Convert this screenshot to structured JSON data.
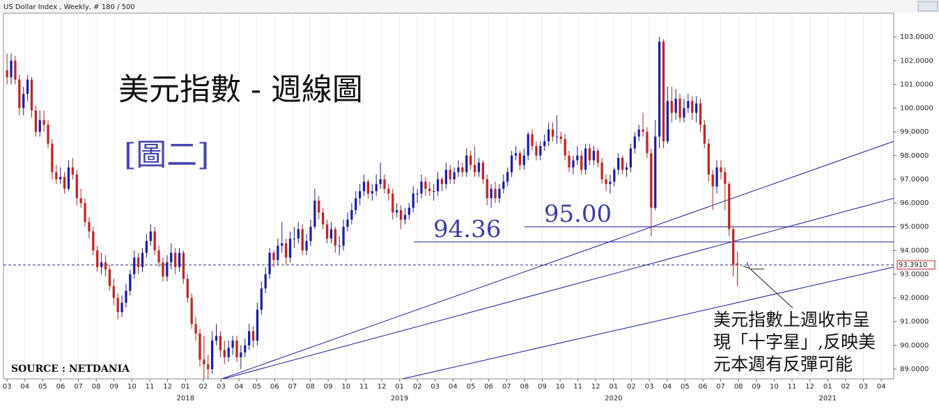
{
  "chart_data": {
    "type": "candlestick",
    "header": "US Dollar Index , Weekly, # 180 / 500",
    "title": "美元指數 - 週線圖",
    "subtitle": "[圖二]",
    "source": "SOURCE : NETDANIA",
    "annotation": [
      "美元指數上週收市呈",
      "現「十字星」,反映美",
      "元本週有反彈可能"
    ],
    "up_color": "#1c1cb4",
    "down_color": "#cc1f1f",
    "xlim": [
      -0.2,
      49.7
    ],
    "ylim": [
      88.59,
      104.0
    ],
    "xticks": [
      {
        "value": 0,
        "label": "03"
      },
      {
        "value": 1,
        "label": "04"
      },
      {
        "value": 2,
        "label": "05"
      },
      {
        "value": 3,
        "label": "06"
      },
      {
        "value": 4,
        "label": "07"
      },
      {
        "value": 5,
        "label": "08"
      },
      {
        "value": 6,
        "label": "09"
      },
      {
        "value": 7,
        "label": "10"
      },
      {
        "value": 8,
        "label": "11"
      },
      {
        "value": 9,
        "label": "12"
      },
      {
        "value": 10,
        "label": "01"
      },
      {
        "value": 11,
        "label": "02"
      },
      {
        "value": 12,
        "label": "03"
      },
      {
        "value": 13,
        "label": "04"
      },
      {
        "value": 14,
        "label": "05"
      },
      {
        "value": 15,
        "label": "06"
      },
      {
        "value": 16,
        "label": "07"
      },
      {
        "value": 17,
        "label": "08"
      },
      {
        "value": 18,
        "label": "09"
      },
      {
        "value": 19,
        "label": "10"
      },
      {
        "value": 20,
        "label": "11"
      },
      {
        "value": 21,
        "label": "12"
      },
      {
        "value": 22,
        "label": "01"
      },
      {
        "value": 23,
        "label": "02"
      },
      {
        "value": 24,
        "label": "03"
      },
      {
        "value": 25,
        "label": "04"
      },
      {
        "value": 26,
        "label": "05"
      },
      {
        "value": 27,
        "label": "06"
      },
      {
        "value": 28,
        "label": "07"
      },
      {
        "value": 29,
        "label": "08"
      },
      {
        "value": 30,
        "label": "09"
      },
      {
        "value": 31,
        "label": "10"
      },
      {
        "value": 32,
        "label": "11"
      },
      {
        "value": 33,
        "label": "12"
      },
      {
        "value": 34,
        "label": "01"
      },
      {
        "value": 35,
        "label": "02"
      },
      {
        "value": 36,
        "label": "03"
      },
      {
        "value": 37,
        "label": "04"
      },
      {
        "value": 38,
        "label": "05"
      },
      {
        "value": 39,
        "label": "06"
      },
      {
        "value": 40,
        "label": "07"
      },
      {
        "value": 41,
        "label": "08"
      },
      {
        "value": 42,
        "label": "09"
      },
      {
        "value": 43,
        "label": "10"
      },
      {
        "value": 44,
        "label": "11"
      },
      {
        "value": 45,
        "label": "12"
      },
      {
        "value": 46,
        "label": "01"
      },
      {
        "value": 47,
        "label": "02"
      },
      {
        "value": 48,
        "label": "03"
      },
      {
        "value": 49,
        "label": "04"
      }
    ],
    "year_labels": [
      {
        "value": 10,
        "label": "2018"
      },
      {
        "value": 22,
        "label": "2019"
      },
      {
        "value": 34,
        "label": "2020"
      },
      {
        "value": 46,
        "label": "2021"
      }
    ],
    "yticks": [
      {
        "value": 89,
        "label": "89.0000"
      },
      {
        "value": 90,
        "label": "90.0000"
      },
      {
        "value": 91,
        "label": "91.0000"
      },
      {
        "value": 92,
        "label": "92.0000"
      },
      {
        "value": 93,
        "label": "93.0000"
      },
      {
        "value": 94,
        "label": "94.0000"
      },
      {
        "value": 95,
        "label": "95.0000"
      },
      {
        "value": 96,
        "label": "96.0000"
      },
      {
        "value": 97,
        "label": "97.0000"
      },
      {
        "value": 98,
        "label": "98.0000"
      },
      {
        "value": 99,
        "label": "99.0000"
      },
      {
        "value": 100,
        "label": "100.0000"
      },
      {
        "value": 101,
        "label": "101.0000"
      },
      {
        "value": 102,
        "label": "102.0000"
      },
      {
        "value": 103,
        "label": "103.0000"
      }
    ],
    "last_price": {
      "value": 93.391,
      "label": "93.3910"
    },
    "levels": [
      {
        "value": 94.36,
        "label": "94.36",
        "start": 22.8
      },
      {
        "value": 95.0,
        "label": "95.00",
        "start": 29.0
      }
    ],
    "trend_lines": [
      {
        "from": [
          11.7,
          88.5
        ],
        "to": [
          49.7,
          98.6
        ]
      },
      {
        "from": [
          11.7,
          88.5
        ],
        "to": [
          49.7,
          96.2
        ]
      },
      {
        "from": [
          19.9,
          88.2
        ],
        "to": [
          49.7,
          93.3
        ]
      }
    ],
    "candles": [
      [
        101.6,
        102.3,
        101.0,
        101.3
      ],
      [
        101.3,
        102.3,
        101.0,
        102.0
      ],
      [
        102.0,
        102.2,
        101.0,
        101.2
      ],
      [
        101.2,
        101.4,
        99.7,
        100.0
      ],
      [
        100.0,
        100.9,
        99.7,
        100.6
      ],
      [
        100.6,
        101.4,
        100.3,
        101.2
      ],
      [
        101.2,
        101.3,
        99.6,
        99.9
      ],
      [
        99.9,
        100.1,
        98.8,
        99.0
      ],
      [
        99.0,
        99.9,
        98.8,
        99.5
      ],
      [
        99.5,
        99.9,
        99.0,
        99.3
      ],
      [
        99.3,
        99.5,
        98.3,
        98.5
      ],
      [
        98.5,
        98.7,
        97.0,
        97.3
      ],
      [
        97.3,
        97.6,
        96.8,
        97.0
      ],
      [
        97.0,
        97.5,
        96.8,
        97.1
      ],
      [
        97.1,
        97.3,
        96.4,
        96.6
      ],
      [
        96.6,
        97.8,
        96.5,
        97.5
      ],
      [
        97.5,
        97.9,
        97.0,
        97.2
      ],
      [
        97.2,
        97.4,
        95.9,
        96.2
      ],
      [
        96.2,
        96.6,
        95.8,
        96.0
      ],
      [
        96.0,
        96.2,
        95.0,
        95.2
      ],
      [
        95.2,
        95.4,
        94.5,
        94.8
      ],
      [
        94.8,
        95.0,
        93.8,
        94.0
      ],
      [
        94.0,
        94.2,
        93.1,
        93.3
      ],
      [
        93.3,
        93.9,
        93.0,
        93.5
      ],
      [
        93.5,
        93.8,
        92.9,
        93.2
      ],
      [
        93.2,
        93.4,
        92.3,
        92.5
      ],
      [
        92.5,
        92.8,
        91.7,
        92.0
      ],
      [
        92.0,
        92.2,
        91.1,
        91.4
      ],
      [
        91.4,
        92.1,
        91.2,
        91.8
      ],
      [
        91.8,
        92.6,
        91.6,
        92.3
      ],
      [
        92.3,
        93.2,
        92.1,
        93.0
      ],
      [
        93.0,
        94.0,
        92.8,
        93.7
      ],
      [
        93.7,
        93.9,
        93.0,
        93.3
      ],
      [
        93.3,
        94.1,
        93.1,
        93.9
      ],
      [
        93.9,
        94.7,
        93.7,
        94.4
      ],
      [
        94.4,
        95.1,
        94.2,
        94.8
      ],
      [
        94.8,
        95.0,
        93.8,
        94.0
      ],
      [
        94.0,
        94.2,
        93.3,
        93.5
      ],
      [
        93.5,
        93.7,
        92.7,
        92.9
      ],
      [
        92.9,
        93.8,
        92.7,
        93.5
      ],
      [
        93.5,
        94.3,
        93.2,
        93.9
      ],
      [
        93.9,
        94.1,
        93.0,
        93.3
      ],
      [
        93.3,
        94.1,
        93.1,
        93.9
      ],
      [
        93.9,
        94.0,
        92.6,
        92.8
      ],
      [
        92.8,
        93.0,
        91.8,
        92.0
      ],
      [
        92.0,
        92.2,
        90.7,
        90.9
      ],
      [
        90.9,
        91.2,
        90.2,
        90.5
      ],
      [
        90.5,
        90.7,
        89.1,
        89.4
      ],
      [
        89.4,
        90.4,
        88.6,
        89.2
      ],
      [
        89.2,
        89.6,
        88.3,
        89.0
      ],
      [
        89.0,
        90.6,
        88.8,
        90.2
      ],
      [
        90.2,
        90.9,
        90.0,
        90.4
      ],
      [
        90.4,
        90.6,
        89.5,
        89.8
      ],
      [
        89.8,
        90.2,
        89.2,
        89.5
      ],
      [
        89.5,
        90.2,
        89.3,
        89.9
      ],
      [
        89.9,
        90.4,
        89.6,
        90.2
      ],
      [
        90.2,
        90.4,
        89.3,
        89.5
      ],
      [
        89.5,
        90.0,
        89.0,
        89.7
      ],
      [
        89.7,
        90.3,
        89.5,
        90.0
      ],
      [
        90.0,
        90.9,
        89.8,
        90.6
      ],
      [
        90.6,
        90.8,
        89.9,
        90.2
      ],
      [
        90.2,
        91.8,
        90.0,
        91.5
      ],
      [
        91.5,
        92.7,
        91.3,
        92.4
      ],
      [
        92.4,
        93.3,
        92.2,
        93.0
      ],
      [
        93.0,
        94.1,
        92.8,
        93.9
      ],
      [
        93.9,
        94.0,
        93.3,
        93.6
      ],
      [
        93.6,
        94.5,
        93.4,
        94.2
      ],
      [
        94.2,
        95.2,
        93.9,
        94.3
      ],
      [
        94.3,
        94.5,
        93.4,
        93.7
      ],
      [
        93.7,
        94.8,
        93.5,
        94.5
      ],
      [
        94.5,
        95.0,
        94.1,
        94.5
      ],
      [
        94.5,
        95.2,
        94.3,
        94.9
      ],
      [
        94.9,
        95.1,
        93.8,
        94.0
      ],
      [
        94.0,
        94.7,
        93.8,
        94.4
      ],
      [
        94.4,
        95.3,
        94.2,
        95.0
      ],
      [
        95.0,
        96.6,
        94.9,
        96.1
      ],
      [
        96.1,
        96.3,
        95.3,
        95.6
      ],
      [
        95.6,
        95.8,
        94.9,
        95.1
      ],
      [
        95.1,
        95.3,
        94.3,
        94.5
      ],
      [
        94.5,
        95.2,
        94.3,
        94.9
      ],
      [
        94.9,
        95.0,
        93.9,
        94.2
      ],
      [
        94.2,
        94.6,
        93.8,
        94.2
      ],
      [
        94.2,
        95.3,
        94.0,
        95.0
      ],
      [
        95.0,
        95.6,
        94.8,
        95.3
      ],
      [
        95.3,
        96.0,
        95.1,
        95.7
      ],
      [
        95.7,
        96.5,
        95.5,
        96.2
      ],
      [
        96.2,
        96.8,
        95.9,
        96.5
      ],
      [
        96.5,
        97.2,
        96.3,
        96.9
      ],
      [
        96.9,
        97.0,
        96.2,
        96.4
      ],
      [
        96.4,
        96.8,
        96.1,
        96.5
      ],
      [
        96.5,
        97.2,
        96.3,
        96.8
      ],
      [
        96.8,
        97.7,
        96.6,
        97.0
      ],
      [
        97.0,
        97.2,
        96.4,
        96.6
      ],
      [
        96.6,
        96.8,
        96.1,
        96.4
      ],
      [
        96.4,
        96.6,
        95.3,
        95.6
      ],
      [
        95.6,
        96.0,
        95.4,
        95.7
      ],
      [
        95.7,
        95.9,
        94.9,
        95.3
      ],
      [
        95.3,
        95.8,
        95.1,
        95.5
      ],
      [
        95.5,
        96.0,
        95.3,
        95.8
      ],
      [
        95.8,
        96.7,
        95.6,
        96.4
      ],
      [
        96.4,
        96.6,
        96.0,
        96.4
      ],
      [
        96.4,
        97.2,
        96.2,
        96.9
      ],
      [
        96.9,
        97.1,
        96.3,
        96.6
      ],
      [
        96.6,
        96.9,
        96.3,
        96.5
      ],
      [
        96.5,
        96.8,
        96.1,
        96.5
      ],
      [
        96.5,
        97.3,
        96.3,
        97.0
      ],
      [
        97.0,
        97.1,
        96.5,
        96.8
      ],
      [
        96.8,
        97.7,
        96.6,
        97.4
      ],
      [
        97.4,
        97.6,
        96.8,
        97.0
      ],
      [
        97.0,
        97.5,
        96.8,
        97.3
      ],
      [
        97.3,
        97.8,
        97.1,
        97.5
      ],
      [
        97.5,
        97.7,
        97.1,
        97.3
      ],
      [
        97.3,
        98.3,
        97.1,
        98.0
      ],
      [
        98.0,
        98.2,
        97.4,
        97.6
      ],
      [
        97.6,
        98.4,
        97.1,
        97.3
      ],
      [
        97.3,
        97.9,
        97.1,
        97.7
      ],
      [
        97.7,
        97.8,
        96.8,
        97.0
      ],
      [
        97.0,
        97.2,
        95.9,
        96.2
      ],
      [
        96.2,
        96.8,
        95.8,
        96.6
      ],
      [
        96.6,
        96.9,
        96.0,
        96.2
      ],
      [
        96.2,
        96.8,
        96.0,
        96.6
      ],
      [
        96.6,
        97.2,
        96.4,
        96.9
      ],
      [
        96.9,
        97.5,
        96.7,
        97.3
      ],
      [
        97.3,
        98.2,
        97.1,
        98.0
      ],
      [
        98.0,
        98.4,
        97.8,
        98.1
      ],
      [
        98.1,
        98.2,
        97.4,
        97.6
      ],
      [
        97.6,
        98.3,
        97.4,
        98.0
      ],
      [
        98.0,
        99.0,
        97.8,
        98.9
      ],
      [
        98.9,
        99.1,
        98.2,
        98.4
      ],
      [
        98.4,
        98.6,
        97.8,
        98.0
      ],
      [
        98.0,
        98.6,
        97.8,
        98.4
      ],
      [
        98.4,
        98.9,
        98.2,
        98.6
      ],
      [
        98.6,
        99.4,
        98.4,
        99.1
      ],
      [
        99.1,
        99.4,
        98.6,
        98.8
      ],
      [
        98.8,
        99.7,
        98.5,
        98.8
      ],
      [
        98.8,
        99.0,
        98.5,
        98.7
      ],
      [
        98.7,
        98.9,
        97.8,
        98.0
      ],
      [
        98.0,
        98.2,
        97.3,
        97.5
      ],
      [
        97.5,
        98.0,
        97.2,
        97.8
      ],
      [
        97.8,
        98.4,
        97.6,
        98.0
      ],
      [
        98.0,
        98.2,
        97.2,
        97.4
      ],
      [
        97.4,
        98.5,
        97.2,
        98.3
      ],
      [
        98.3,
        98.5,
        97.6,
        97.8
      ],
      [
        97.8,
        98.4,
        97.6,
        98.2
      ],
      [
        98.2,
        98.3,
        97.5,
        97.7
      ],
      [
        97.7,
        97.9,
        96.8,
        97.0
      ],
      [
        97.0,
        97.2,
        96.5,
        96.8
      ],
      [
        96.8,
        97.2,
        96.4,
        96.9
      ],
      [
        96.9,
        97.5,
        96.7,
        97.4
      ],
      [
        97.4,
        98.1,
        97.2,
        97.9
      ],
      [
        97.9,
        98.0,
        97.2,
        97.4
      ],
      [
        97.4,
        97.7,
        97.1,
        97.5
      ],
      [
        97.5,
        98.5,
        97.3,
        98.3
      ],
      [
        98.3,
        99.0,
        98.1,
        98.8
      ],
      [
        98.8,
        99.3,
        98.6,
        99.1
      ],
      [
        99.1,
        99.8,
        98.8,
        99.0
      ],
      [
        99.0,
        99.2,
        97.9,
        98.1
      ],
      [
        98.1,
        98.3,
        94.6,
        95.8
      ],
      [
        95.8,
        99.5,
        95.7,
        98.8
      ],
      [
        98.8,
        103.0,
        98.3,
        102.8
      ],
      [
        102.8,
        102.9,
        98.3,
        98.6
      ],
      [
        98.6,
        100.9,
        98.5,
        100.3
      ],
      [
        100.3,
        100.9,
        99.4,
        99.8
      ],
      [
        99.8,
        100.8,
        99.5,
        100.4
      ],
      [
        100.4,
        100.6,
        99.4,
        99.6
      ],
      [
        99.6,
        100.4,
        99.4,
        100.0
      ],
      [
        100.0,
        100.6,
        99.8,
        100.3
      ],
      [
        100.3,
        100.5,
        99.5,
        99.8
      ],
      [
        99.8,
        100.5,
        99.4,
        100.2
      ],
      [
        100.2,
        100.4,
        99.0,
        99.3
      ],
      [
        99.3,
        99.5,
        98.3,
        98.5
      ],
      [
        98.5,
        98.7,
        96.9,
        97.2
      ],
      [
        97.2,
        97.4,
        95.7,
        96.7
      ],
      [
        96.7,
        97.8,
        96.4,
        97.5
      ],
      [
        97.5,
        97.8,
        97.0,
        97.3
      ],
      [
        97.3,
        97.5,
        95.7,
        96.8
      ],
      [
        96.8,
        96.9,
        94.6,
        94.9
      ],
      [
        94.9,
        95.0,
        92.9,
        93.4
      ],
      [
        93.45,
        93.95,
        92.5,
        93.391
      ]
    ]
  }
}
